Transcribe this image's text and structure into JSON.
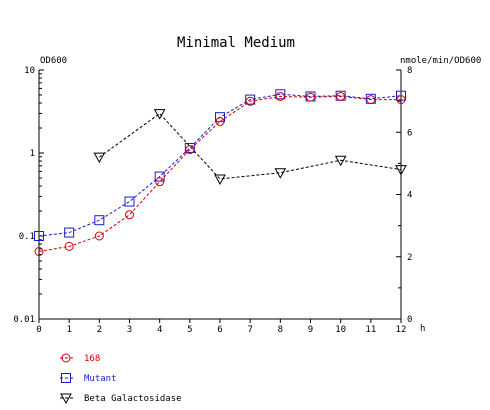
{
  "chart_data": {
    "type": "line",
    "title": "Minimal Medium",
    "xlabel": "h",
    "ylabel_left": "OD600",
    "ylabel_right": "nmole/min/OD600",
    "x_ticks": [
      "0",
      "1",
      "2",
      "3",
      "4",
      "5",
      "6",
      "7",
      "8",
      "9",
      "10",
      "11",
      "12"
    ],
    "xlim": [
      0,
      12
    ],
    "ylim_left": [
      0.01,
      10
    ],
    "ylim_right": [
      0,
      8
    ],
    "y_left_scale": "log",
    "y_left_ticks": [
      "10",
      "1",
      "0.1",
      "0.01"
    ],
    "y_right_ticks": [
      "8",
      "6",
      "4",
      "2",
      "0"
    ],
    "grid": false,
    "legend_position": "bottom-left",
    "series": [
      {
        "name": "168",
        "axis": "left",
        "marker": "circle",
        "color": "#d40000",
        "x": [
          0,
          1,
          2,
          3,
          4,
          5,
          6,
          7,
          8,
          9,
          10,
          11,
          12
        ],
        "y": [
          0.065,
          0.075,
          0.1,
          0.18,
          0.45,
          1.1,
          2.4,
          4.2,
          4.8,
          4.7,
          4.8,
          4.4,
          4.4
        ]
      },
      {
        "name": "Mutant",
        "axis": "left",
        "marker": "square",
        "color": "#1a1ad4",
        "x": [
          0,
          1,
          2,
          3,
          4,
          5,
          6,
          7,
          8,
          9,
          10,
          11,
          12
        ],
        "y": [
          0.1,
          0.11,
          0.155,
          0.26,
          0.52,
          1.15,
          2.7,
          4.4,
          5.1,
          4.8,
          4.9,
          4.5,
          4.9
        ]
      },
      {
        "name": "Beta Galactosidase",
        "axis": "right",
        "marker": "triangle-down",
        "color": "#000000",
        "x": [
          2,
          4,
          6,
          8,
          10,
          12
        ],
        "y": [
          5.2,
          6.6,
          4.5,
          4.7,
          5.1,
          4.8
        ]
      }
    ]
  }
}
